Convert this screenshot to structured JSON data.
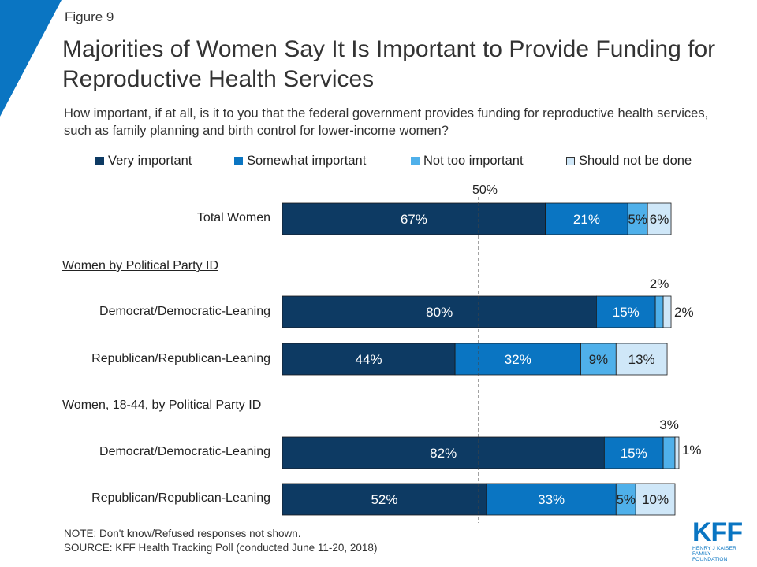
{
  "header": {
    "figure_label": "Figure 9",
    "title": "Majorities of Women Say It Is Important to Provide Funding for Reproductive Health Services",
    "subtitle": "How important, if at all, is it to you that the federal government provides funding for reproductive health services, such as family planning and birth control for lower-income women?"
  },
  "chart_data": {
    "type": "bar",
    "orientation": "horizontal",
    "stacked": true,
    "xlim": [
      0,
      100
    ],
    "reference_line": {
      "value": 50,
      "label": "50%"
    },
    "legend_position": "top",
    "series": [
      {
        "name": "Very important",
        "color": "#0d3a63"
      },
      {
        "name": "Somewhat important",
        "color": "#0a75c2"
      },
      {
        "name": "Not too important",
        "color": "#4fb0ea"
      },
      {
        "name": "Should not be done",
        "color": "#cfe7f8"
      }
    ],
    "groups": [
      {
        "heading": "",
        "rows": [
          {
            "label": "Total Women",
            "values": [
              67,
              21,
              5,
              6
            ],
            "value_labels": [
              "67%",
              "21%",
              "5%",
              "6%"
            ]
          }
        ]
      },
      {
        "heading": "Women by Political Party ID",
        "rows": [
          {
            "label": "Democrat/Democratic-Leaning",
            "values": [
              80,
              15,
              2,
              2
            ],
            "value_labels": [
              "80%",
              "15%",
              "2%",
              "2%"
            ]
          },
          {
            "label": "Republican/Republican-Leaning",
            "values": [
              44,
              32,
              9,
              13
            ],
            "value_labels": [
              "44%",
              "32%",
              "9%",
              "13%"
            ]
          }
        ]
      },
      {
        "heading": "Women, 18-44, by Political Party ID",
        "rows": [
          {
            "label": "Democrat/Democratic-Leaning",
            "values": [
              82,
              15,
              3,
              1
            ],
            "value_labels": [
              "82%",
              "15%",
              "3%",
              "1%"
            ]
          },
          {
            "label": "Republican/Republican-Leaning",
            "values": [
              52,
              33,
              5,
              10
            ],
            "value_labels": [
              "52%",
              "33%",
              "5%",
              "10%"
            ]
          }
        ]
      }
    ]
  },
  "footer": {
    "note": "NOTE: Don't know/Refused responses not shown.",
    "source": "SOURCE: KFF Health Tracking Poll (conducted June 11-20, 2018)"
  },
  "logo": {
    "mark": "KFF",
    "line1": "HENRY J KAISER",
    "line2": "FAMILY FOUNDATION"
  }
}
